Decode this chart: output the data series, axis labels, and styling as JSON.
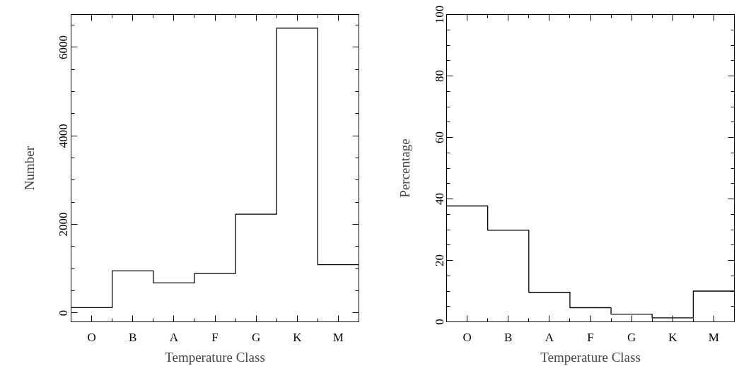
{
  "chart_data": [
    {
      "type": "step",
      "xlabel": "Temperature Class",
      "ylabel": "Number",
      "categories": [
        "O",
        "B",
        "A",
        "F",
        "G",
        "K",
        "M"
      ],
      "values": [
        120,
        950,
        680,
        890,
        2230,
        6430,
        1090
      ],
      "color": "#000000",
      "ylim": [
        -200,
        6740
      ],
      "yticks": [
        0,
        {
          "value": 500,
          "label": null
        },
        {
          "value": 1000,
          "label": null
        },
        {
          "value": 1500,
          "label": null
        },
        2000,
        {
          "value": 2500,
          "label": null
        },
        {
          "value": 3000,
          "label": null
        },
        {
          "value": 3500,
          "label": null
        },
        4000,
        {
          "value": 4500,
          "label": null
        },
        {
          "value": 5000,
          "label": null
        },
        {
          "value": 5500,
          "label": null
        },
        6000,
        {
          "value": 6500,
          "label": null
        }
      ]
    },
    {
      "type": "step",
      "xlabel": "Temperature Class",
      "ylabel": "Percentage",
      "categories": [
        "O",
        "B",
        "A",
        "F",
        "G",
        "K",
        "M"
      ],
      "values": [
        37.7,
        29.8,
        9.6,
        4.6,
        2.5,
        1.3,
        10.0
      ],
      "color": "#000000",
      "ylim": [
        0,
        100
      ],
      "yticks": [
        0,
        {
          "value": 5,
          "label": null
        },
        {
          "value": 10,
          "label": null
        },
        {
          "value": 15,
          "label": null
        },
        20,
        {
          "value": 25,
          "label": null
        },
        {
          "value": 30,
          "label": null
        },
        {
          "value": 35,
          "label": null
        },
        40,
        {
          "value": 45,
          "label": null
        },
        {
          "value": 50,
          "label": null
        },
        {
          "value": 55,
          "label": null
        },
        60,
        {
          "value": 65,
          "label": null
        },
        {
          "value": 70,
          "label": null
        },
        {
          "value": 75,
          "label": null
        },
        80,
        {
          "value": 85,
          "label": null
        },
        {
          "value": 90,
          "label": null
        },
        {
          "value": 95,
          "label": null
        },
        100
      ]
    }
  ]
}
